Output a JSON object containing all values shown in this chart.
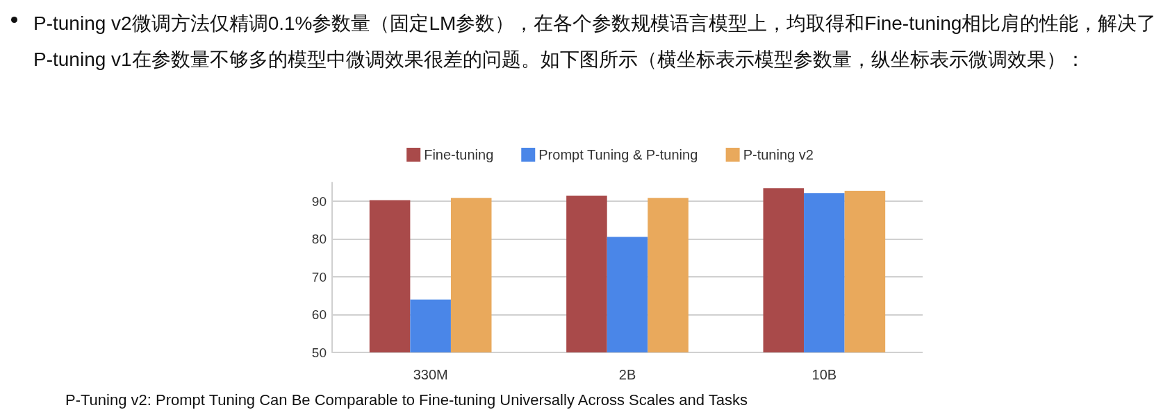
{
  "chart_data": {
    "type": "bar",
    "title": "P-tuning  v2微调方法仅精调0.1%参数量（固定LM参数），在各个参数规模语言模型上，均取得和Fine-tuning相比肩的性能，解决了P-tuning  v1在参数量不够多的模型中微调效果很差的问题。如下图所示（横坐标表示模型参数量，纵坐标表示微调效果）：",
    "annotations": [
      "P-Tuning v2: Prompt Tuning Can Be Comparable to Fine-tuning Universally Across Scales and Tasks"
    ],
    "categories": [
      "330M",
      "2B",
      "10B"
    ],
    "series": [
      {
        "name": "Fine-tuning",
        "color": "#a94a4a",
        "values": [
          90.3,
          91.5,
          93.5
        ]
      },
      {
        "name": "Prompt Tuning & P-tuning",
        "color": "#4a86e8",
        "values": [
          64,
          80.6,
          92.2
        ]
      },
      {
        "name": "P-tuning v2",
        "color": "#e9a95c",
        "values": [
          90.9,
          90.9,
          92.8
        ]
      }
    ],
    "ylim": [
      50,
      95
    ],
    "yticks": [
      50,
      60,
      70,
      80,
      90
    ],
    "grid": "y",
    "legend": "top"
  }
}
